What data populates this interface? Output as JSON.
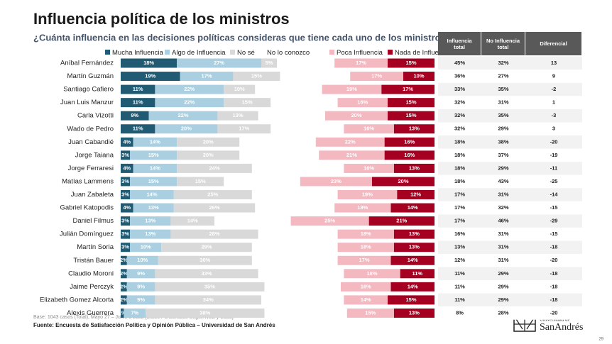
{
  "chart_data": {
    "type": "bar",
    "title": "Influencia política de los ministros",
    "subtitle": "¿Cuánta influencia en las decisiones políticas consideras que tiene cada uno de los ministros?",
    "categories": [
      "Aníbal Fernández",
      "Martín Guzmán",
      "Santiago Cafiero",
      "Juan Luis Manzur",
      "Carla Vizotti",
      "Wado de Pedro",
      "Juan Cabandié",
      "Jorge Taiana",
      "Jorge Ferraresi",
      "Matías Lammens",
      "Juan Zabaleta",
      "Gabriel Katopodis",
      "Daniel Filmus",
      "Julián Domínguez",
      "Martín Soria",
      "Tristán Bauer",
      "Claudio Moroni",
      "Jaime Perczyk",
      "Elizabeth Gomez Alcorta",
      "Alexis Guerrera"
    ],
    "series": [
      {
        "name": "Mucha Influencia",
        "color": "#215a73",
        "side": "left",
        "values": [
          18,
          19,
          11,
          11,
          9,
          11,
          4,
          3,
          4,
          3,
          3,
          4,
          3,
          3,
          3,
          2,
          2,
          2,
          2,
          1
        ],
        "value_labels": [
          "18%",
          "19%",
          "11%",
          "11%",
          "9%",
          "11%",
          "4%",
          "3%",
          "4%",
          "3%",
          "3%",
          "4%",
          "3%",
          "3%",
          "3%",
          "2%",
          "2%",
          "2%",
          "2%",
          "1%"
        ]
      },
      {
        "name": "Algo de Influencia",
        "color": "#a9cfe0",
        "side": "left",
        "values": [
          27,
          17,
          22,
          22,
          22,
          20,
          14,
          15,
          14,
          15,
          14,
          13,
          13,
          13,
          10,
          10,
          9,
          9,
          9,
          7
        ],
        "value_labels": [
          "27%",
          "17%",
          "22%",
          "22%",
          "22%",
          "20%",
          "14%",
          "15%",
          "14%",
          "15%",
          "14%",
          "13%",
          "13%",
          "13%",
          "10%",
          "10%",
          "9%",
          "9%",
          "9%",
          "7%"
        ]
      },
      {
        "name": "No sé",
        "color": "#d9d9d9",
        "side": "left",
        "values": [
          5,
          15,
          10,
          15,
          13,
          17,
          20,
          20,
          24,
          15,
          25,
          26,
          14,
          28,
          29,
          30,
          33,
          35,
          34,
          38
        ],
        "value_labels": [
          "5%",
          "15%",
          "10%",
          "15%",
          "13%",
          "17%",
          "20%",
          "20%",
          "24%",
          "15%",
          "25%",
          "26%",
          "14%",
          "28%",
          "29%",
          "30%",
          "33%",
          "35%",
          "34%",
          "38%"
        ]
      },
      {
        "name": "No lo conozco",
        "color": "#ffffff",
        "side": "none",
        "values": [
          null,
          null,
          null,
          null,
          null,
          null,
          null,
          null,
          null,
          null,
          null,
          null,
          null,
          null,
          null,
          null,
          null,
          null,
          null,
          null
        ]
      },
      {
        "name": "Poca Influencia",
        "color": "#f4b8c1",
        "side": "right",
        "values": [
          17,
          17,
          19,
          16,
          20,
          16,
          22,
          21,
          16,
          23,
          19,
          18,
          25,
          18,
          18,
          17,
          18,
          16,
          14,
          15
        ],
        "value_labels": [
          "17%",
          "17%",
          "19%",
          "16%",
          "20%",
          "16%",
          "22%",
          "21%",
          "16%",
          "23%",
          "19%",
          "18%",
          "25%",
          "18%",
          "18%",
          "17%",
          "18%",
          "16%",
          "14%",
          "15%"
        ]
      },
      {
        "name": "Nada de Influencia",
        "color": "#a50021",
        "side": "right",
        "values": [
          15,
          10,
          17,
          15,
          15,
          13,
          16,
          16,
          13,
          20,
          12,
          14,
          21,
          13,
          13,
          14,
          11,
          14,
          15,
          13
        ],
        "value_labels": [
          "15%",
          "10%",
          "17%",
          "15%",
          "15%",
          "13%",
          "16%",
          "16%",
          "13%",
          "20%",
          "12%",
          "14%",
          "21%",
          "13%",
          "13%",
          "14%",
          "11%",
          "14%",
          "15%",
          "13%"
        ]
      }
    ],
    "table": {
      "columns": [
        "Influencia total",
        "No Influencia total",
        "Diferencial"
      ],
      "rows": [
        [
          "45%",
          "32%",
          "13"
        ],
        [
          "36%",
          "27%",
          "9"
        ],
        [
          "33%",
          "35%",
          "-2"
        ],
        [
          "32%",
          "31%",
          "1"
        ],
        [
          "32%",
          "35%",
          "-3"
        ],
        [
          "32%",
          "29%",
          "3"
        ],
        [
          "18%",
          "38%",
          "-20"
        ],
        [
          "18%",
          "37%",
          "-19"
        ],
        [
          "18%",
          "29%",
          "-11"
        ],
        [
          "18%",
          "43%",
          "-25"
        ],
        [
          "17%",
          "31%",
          "-14"
        ],
        [
          "17%",
          "32%",
          "-15"
        ],
        [
          "17%",
          "46%",
          "-29"
        ],
        [
          "16%",
          "31%",
          "-15"
        ],
        [
          "13%",
          "31%",
          "-18"
        ],
        [
          "12%",
          "31%",
          "-20"
        ],
        [
          "11%",
          "29%",
          "-18"
        ],
        [
          "11%",
          "29%",
          "-18"
        ],
        [
          "11%",
          "29%",
          "-18"
        ],
        [
          "8%",
          "28%",
          "-20"
        ]
      ]
    },
    "note": "Base: 1043 casos (Total), Mayo 27 – Junio 8 2022 [Datos Ponderados Según NSE y Edad]",
    "source": "Fuente: Encuesta de Satisfacción Política y Opinión Pública – Universidad de San Andrés",
    "logo_top": "Universidad de",
    "logo_bottom": "SanAndrés",
    "page_number": "29"
  }
}
